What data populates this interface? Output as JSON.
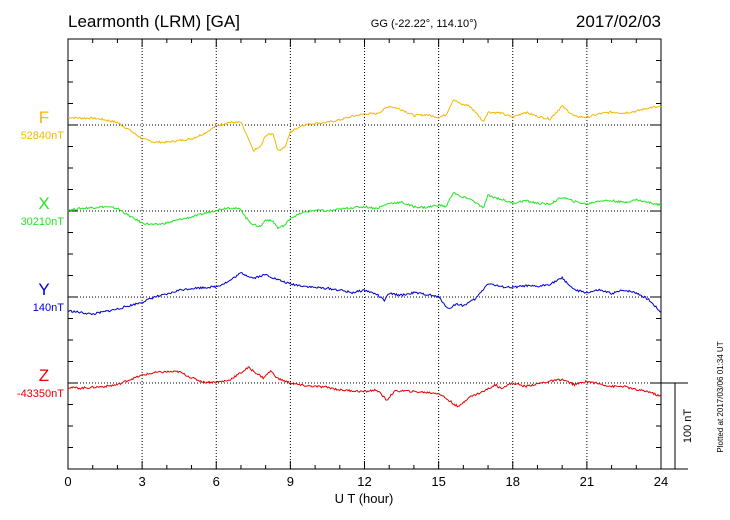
{
  "header": {
    "title": "Learmonth (LRM)  [GA]",
    "coords": "GG (-22.22°, 114.10°)",
    "date": "2017/02/03"
  },
  "side_note": "Plotted at 2017/03/06 01:34 UT",
  "scale_label": "100 nT",
  "chart_data": {
    "type": "line",
    "xlabel": "U T (hour)",
    "x_ticks": [
      0,
      3,
      6,
      9,
      12,
      15,
      18,
      21,
      24
    ],
    "xlim": [
      0,
      24
    ],
    "grid": true,
    "scale_bar_nT": 100,
    "series": [
      {
        "name": "F",
        "baseline_label": "52840nT",
        "color": "#f5b800",
        "values": [
          [
            0,
            9
          ],
          [
            0.5,
            8
          ],
          [
            1,
            8
          ],
          [
            1.5,
            6
          ],
          [
            2,
            3
          ],
          [
            2.5,
            -6
          ],
          [
            3,
            -16
          ],
          [
            3.5,
            -20
          ],
          [
            4,
            -20
          ],
          [
            4.5,
            -18
          ],
          [
            5,
            -16
          ],
          [
            5.5,
            -10
          ],
          [
            6,
            -1
          ],
          [
            6.5,
            3
          ],
          [
            7,
            3
          ],
          [
            7.2,
            -10
          ],
          [
            7.5,
            -30
          ],
          [
            7.8,
            -25
          ],
          [
            8,
            -12
          ],
          [
            8.3,
            -10
          ],
          [
            8.5,
            -30
          ],
          [
            8.8,
            -25
          ],
          [
            9,
            -8
          ],
          [
            9.5,
            0
          ],
          [
            10,
            2
          ],
          [
            10.5,
            3
          ],
          [
            11,
            6
          ],
          [
            11.5,
            10
          ],
          [
            12,
            13
          ],
          [
            12.5,
            13
          ],
          [
            13,
            22
          ],
          [
            13.5,
            18
          ],
          [
            14,
            11
          ],
          [
            14.5,
            12
          ],
          [
            15,
            9
          ],
          [
            15.3,
            12
          ],
          [
            15.6,
            30
          ],
          [
            15.9,
            24
          ],
          [
            16.2,
            23
          ],
          [
            16.5,
            15
          ],
          [
            16.8,
            4
          ],
          [
            17,
            15
          ],
          [
            17.5,
            14
          ],
          [
            18,
            9
          ],
          [
            18.5,
            15
          ],
          [
            19,
            10
          ],
          [
            19.5,
            7
          ],
          [
            20,
            22
          ],
          [
            20.5,
            10
          ],
          [
            21,
            9
          ],
          [
            21.5,
            13
          ],
          [
            22,
            15
          ],
          [
            22.5,
            14
          ],
          [
            23,
            16
          ],
          [
            23.5,
            20
          ],
          [
            24,
            21
          ]
        ]
      },
      {
        "name": "X",
        "baseline_label": "30210nT",
        "color": "#22e622",
        "values": [
          [
            0,
            1
          ],
          [
            0.5,
            3
          ],
          [
            1,
            4
          ],
          [
            1.5,
            5
          ],
          [
            2,
            3
          ],
          [
            2.5,
            -6
          ],
          [
            3,
            -14
          ],
          [
            3.5,
            -16
          ],
          [
            4,
            -14
          ],
          [
            4.5,
            -10
          ],
          [
            5,
            -7
          ],
          [
            5.5,
            -3
          ],
          [
            6,
            1
          ],
          [
            6.5,
            4
          ],
          [
            7,
            2
          ],
          [
            7.2,
            -8
          ],
          [
            7.5,
            -16
          ],
          [
            7.8,
            -18
          ],
          [
            8,
            -10
          ],
          [
            8.3,
            -12
          ],
          [
            8.5,
            -20
          ],
          [
            8.8,
            -16
          ],
          [
            9,
            -8
          ],
          [
            9.5,
            -2
          ],
          [
            10,
            1
          ],
          [
            10.5,
            0
          ],
          [
            11,
            2
          ],
          [
            11.5,
            4
          ],
          [
            12,
            5
          ],
          [
            12.5,
            3
          ],
          [
            13,
            9
          ],
          [
            13.5,
            10
          ],
          [
            14,
            5
          ],
          [
            14.5,
            4
          ],
          [
            15,
            7
          ],
          [
            15.3,
            5
          ],
          [
            15.6,
            22
          ],
          [
            15.9,
            16
          ],
          [
            16.2,
            15
          ],
          [
            16.5,
            10
          ],
          [
            16.8,
            3
          ],
          [
            17,
            18
          ],
          [
            17.5,
            14
          ],
          [
            18,
            9
          ],
          [
            18.5,
            12
          ],
          [
            19,
            9
          ],
          [
            19.5,
            8
          ],
          [
            20,
            16
          ],
          [
            20.5,
            11
          ],
          [
            21,
            8
          ],
          [
            21.5,
            12
          ],
          [
            22,
            12
          ],
          [
            22.5,
            10
          ],
          [
            23,
            13
          ],
          [
            23.5,
            10
          ],
          [
            24,
            7
          ]
        ]
      },
      {
        "name": "Y",
        "baseline_label": "140nT",
        "color": "#0000cc",
        "values": [
          [
            0,
            -16
          ],
          [
            0.5,
            -18
          ],
          [
            1,
            -20
          ],
          [
            1.5,
            -17
          ],
          [
            2,
            -14
          ],
          [
            2.5,
            -10
          ],
          [
            3,
            -6
          ],
          [
            3.5,
            0
          ],
          [
            4,
            3
          ],
          [
            4.5,
            8
          ],
          [
            5,
            10
          ],
          [
            5.5,
            11
          ],
          [
            6,
            12
          ],
          [
            6.5,
            18
          ],
          [
            7,
            28
          ],
          [
            7.5,
            22
          ],
          [
            8,
            26
          ],
          [
            8.5,
            20
          ],
          [
            9,
            15
          ],
          [
            9.5,
            13
          ],
          [
            10,
            11
          ],
          [
            10.5,
            10
          ],
          [
            11,
            8
          ],
          [
            11.5,
            5
          ],
          [
            12,
            8
          ],
          [
            12.5,
            3
          ],
          [
            12.8,
            -4
          ],
          [
            13,
            4
          ],
          [
            13.5,
            2
          ],
          [
            14,
            5
          ],
          [
            14.5,
            3
          ],
          [
            15,
            0
          ],
          [
            15.4,
            -14
          ],
          [
            15.7,
            -8
          ],
          [
            16,
            -10
          ],
          [
            16.5,
            -2
          ],
          [
            17,
            16
          ],
          [
            17.5,
            12
          ],
          [
            18,
            11
          ],
          [
            18.5,
            13
          ],
          [
            19,
            12
          ],
          [
            19.5,
            15
          ],
          [
            20,
            22
          ],
          [
            20.5,
            8
          ],
          [
            21,
            5
          ],
          [
            21.5,
            8
          ],
          [
            22,
            4
          ],
          [
            22.5,
            8
          ],
          [
            23,
            5
          ],
          [
            23.5,
            -3
          ],
          [
            24,
            -18
          ]
        ]
      },
      {
        "name": "Z",
        "baseline_label": "-43350nT",
        "color": "#e60000",
        "values": [
          [
            0,
            -5
          ],
          [
            0.5,
            -6
          ],
          [
            1,
            -5
          ],
          [
            1.5,
            -4
          ],
          [
            2,
            -2
          ],
          [
            2.5,
            4
          ],
          [
            3,
            9
          ],
          [
            3.5,
            12
          ],
          [
            4,
            13
          ],
          [
            4.5,
            13
          ],
          [
            5,
            6
          ],
          [
            5.5,
            1
          ],
          [
            6,
            1
          ],
          [
            6.5,
            3
          ],
          [
            7,
            12
          ],
          [
            7.3,
            18
          ],
          [
            7.6,
            12
          ],
          [
            7.9,
            6
          ],
          [
            8.2,
            14
          ],
          [
            8.5,
            5
          ],
          [
            9,
            0
          ],
          [
            9.5,
            -3
          ],
          [
            10,
            -4
          ],
          [
            10.5,
            -5
          ],
          [
            11,
            -8
          ],
          [
            11.5,
            -9
          ],
          [
            12,
            -10
          ],
          [
            12.5,
            -8
          ],
          [
            12.9,
            -20
          ],
          [
            13.2,
            -10
          ],
          [
            13.5,
            -9
          ],
          [
            14,
            -10
          ],
          [
            14.5,
            -11
          ],
          [
            15,
            -12
          ],
          [
            15.5,
            -22
          ],
          [
            15.8,
            -28
          ],
          [
            16.2,
            -17
          ],
          [
            16.8,
            -10
          ],
          [
            17.3,
            -2
          ],
          [
            17.5,
            -6
          ],
          [
            18,
            0
          ],
          [
            18.5,
            -4
          ],
          [
            19,
            -1
          ],
          [
            19.5,
            2
          ],
          [
            20,
            4
          ],
          [
            20.5,
            -2
          ],
          [
            21,
            2
          ],
          [
            21.5,
            -1
          ],
          [
            22,
            -4
          ],
          [
            22.5,
            -4
          ],
          [
            23,
            -8
          ],
          [
            23.5,
            -10
          ],
          [
            24,
            -16
          ]
        ]
      }
    ]
  }
}
